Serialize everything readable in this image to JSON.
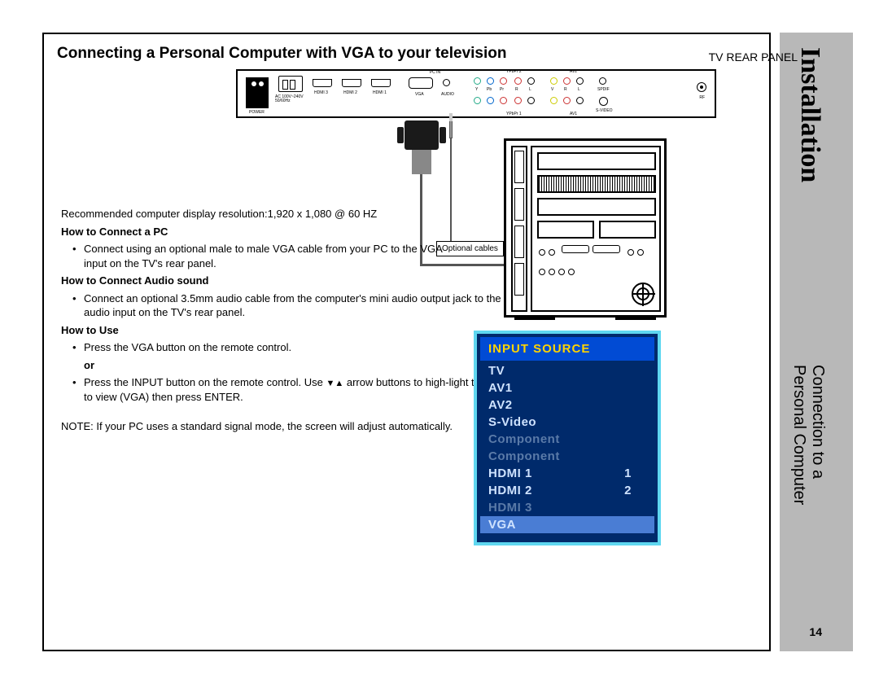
{
  "side": {
    "title": "Installation",
    "sub1": "Connection to a",
    "sub2": "Personal Computer"
  },
  "headline": "Connecting a Personal Computer with VGA to your television",
  "rear_label": "TV REAR PANEL",
  "rear_panel": {
    "power": "POWER",
    "ac": "AC 100V~240V\n50/60Hz",
    "hdmi3": "HDMI 3",
    "hdmi2": "HDMI 2",
    "hdmi1": "HDMI 1",
    "pcin": "PC IN",
    "vga": "VGA",
    "audio": "AUDIO",
    "ypbpr1": "YPbPr 1",
    "ypbpr2": "YPbPr 2",
    "y": "Y",
    "pb": "Pb",
    "pr": "Pr",
    "r": "R",
    "l": "L",
    "av1": "AV1",
    "av2": "AV2",
    "v": "V",
    "spdif": "SPDIF",
    "svideo": "S-VIDEO",
    "rf": "RF"
  },
  "optional": "Optional cables",
  "body": {
    "resolution": "Recommended computer display resolution:1,920 x 1,080 @ 60 HZ",
    "h1": "How to Connect a PC",
    "p1": "Connect using an optional male to male VGA cable from your PC to the VGA input on the TV's rear panel.",
    "h2": "How to Connect Audio sound",
    "p2": "Connect an optional 3.5mm audio cable from the computer's mini audio output jack to the audio input on the TV's rear panel.",
    "h3": "How to Use",
    "p3": "Press the VGA button on the remote control.",
    "or": "or",
    "p4a": "Press the INPUT button on the remote control. Use ",
    "p4b": " arrow buttons to high-light the input to view (VGA) then press ENTER.",
    "note": "NOTE: If your PC uses a standard signal mode, the screen will adjust automatically."
  },
  "osd": {
    "title": "INPUT SOURCE",
    "items": [
      {
        "label": "TV",
        "num": "",
        "dim": false,
        "sel": false
      },
      {
        "label": "AV1",
        "num": "",
        "dim": false,
        "sel": false
      },
      {
        "label": "AV2",
        "num": "",
        "dim": false,
        "sel": false
      },
      {
        "label": "S-Video",
        "num": "",
        "dim": false,
        "sel": false
      },
      {
        "label": "Component",
        "num": "",
        "dim": true,
        "sel": false
      },
      {
        "label": "Component",
        "num": "",
        "dim": true,
        "sel": false
      },
      {
        "label": "HDMI 1",
        "num": "1",
        "dim": false,
        "sel": false
      },
      {
        "label": "HDMI 2",
        "num": "2",
        "dim": false,
        "sel": false
      },
      {
        "label": "HDMI 3",
        "num": "",
        "dim": true,
        "sel": false
      },
      {
        "label": "VGA",
        "num": "",
        "dim": false,
        "sel": true
      }
    ],
    "colors": {
      "border": "#5fd7f0",
      "bg": "#002a6b",
      "head_bg": "#014bd4",
      "head_fg": "#ffd400",
      "item_fg": "#cfe3ff",
      "dim_fg": "#5a7aa8",
      "sel_bg": "#4a7dd4"
    }
  },
  "page_num": "14"
}
